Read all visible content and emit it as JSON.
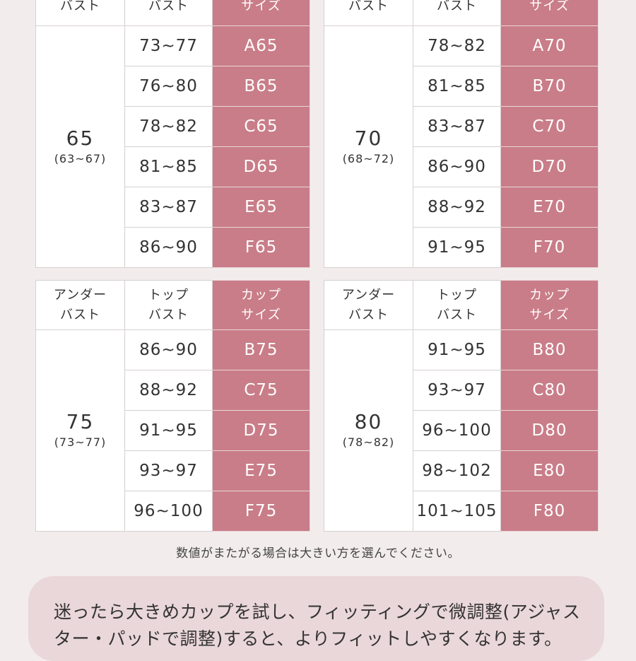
{
  "tables": [
    {
      "header": {
        "under_1": "",
        "under_2": "バスト",
        "top_1": "",
        "top_2": "バスト",
        "cup_1": "",
        "cup_2": "サイズ"
      },
      "under": "65",
      "under_range": "(63~67)",
      "rows": [
        {
          "top": "73~77",
          "cup": "A65"
        },
        {
          "top": "76~80",
          "cup": "B65"
        },
        {
          "top": "78~82",
          "cup": "C65"
        },
        {
          "top": "81~85",
          "cup": "D65"
        },
        {
          "top": "83~87",
          "cup": "E65"
        },
        {
          "top": "86~90",
          "cup": "F65"
        }
      ]
    },
    {
      "header": {
        "under_1": "",
        "under_2": "バスト",
        "top_1": "",
        "top_2": "バスト",
        "cup_1": "",
        "cup_2": "サイズ"
      },
      "under": "70",
      "under_range": "(68~72)",
      "rows": [
        {
          "top": "78~82",
          "cup": "A70"
        },
        {
          "top": "81~85",
          "cup": "B70"
        },
        {
          "top": "83~87",
          "cup": "C70"
        },
        {
          "top": "86~90",
          "cup": "D70"
        },
        {
          "top": "88~92",
          "cup": "E70"
        },
        {
          "top": "91~95",
          "cup": "F70"
        }
      ]
    },
    {
      "header": {
        "under_1": "アンダー",
        "under_2": "バスト",
        "top_1": "トップ",
        "top_2": "バスト",
        "cup_1": "カップ",
        "cup_2": "サイズ"
      },
      "under": "75",
      "under_range": "(73~77)",
      "rows": [
        {
          "top": "86~90",
          "cup": "B75"
        },
        {
          "top": "88~92",
          "cup": "C75"
        },
        {
          "top": "91~95",
          "cup": "D75"
        },
        {
          "top": "93~97",
          "cup": "E75"
        },
        {
          "top": "96~100",
          "cup": "F75"
        }
      ]
    },
    {
      "header": {
        "under_1": "アンダー",
        "under_2": "バスト",
        "top_1": "トップ",
        "top_2": "バスト",
        "cup_1": "カップ",
        "cup_2": "サイズ"
      },
      "under": "80",
      "under_range": "(78~82)",
      "rows": [
        {
          "top": "91~95",
          "cup": "B80"
        },
        {
          "top": "93~97",
          "cup": "C80"
        },
        {
          "top": "96~100",
          "cup": "D80"
        },
        {
          "top": "98~102",
          "cup": "E80"
        },
        {
          "top": "101~105",
          "cup": "F80"
        }
      ]
    }
  ],
  "note": "数値がまたがる場合は大きい方を選んでください。",
  "tip": "迷ったら大きめカップを試し、フィッティングで微調整(アジャスター・パッドで調整)すると、よりフィットしやすくなります。",
  "colors": {
    "cup_bg": "#c97d88",
    "page_bg": "#f3eced",
    "tip_bg": "#ead7d9"
  }
}
